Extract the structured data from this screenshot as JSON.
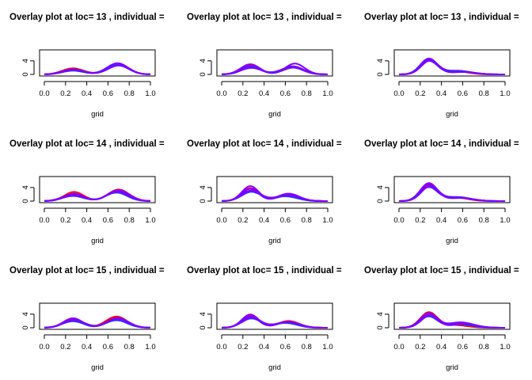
{
  "colors": {
    "red": "#ff0000",
    "blue": "#3030ff",
    "violet": "#8000ff"
  },
  "chart_data": [
    {
      "type": "line",
      "title": "Overlay plot at loc= 13 , individual =",
      "xlabel": "grid",
      "ylabel": "",
      "xlim": [
        0,
        1
      ],
      "ylim": [
        0,
        7
      ],
      "x_ticks": [
        "0.0",
        "0.2",
        "0.4",
        "0.6",
        "0.8",
        "1.0"
      ],
      "y_ticks": [
        "0",
        "4"
      ],
      "series": [
        {
          "color": "#ff0000",
          "peaks": [
            [
              0.27,
              0.1,
              1.8
            ],
            [
              0.69,
              0.1,
              3.0
            ]
          ]
        },
        {
          "color": "#8000ff",
          "peaks": [
            [
              0.27,
              0.1,
              1.5
            ],
            [
              0.69,
              0.1,
              3.3
            ]
          ]
        },
        {
          "color": "#8000ff",
          "peaks": [
            [
              0.27,
              0.1,
              1.3
            ],
            [
              0.69,
              0.1,
              3.1
            ]
          ]
        },
        {
          "color": "#3030ff",
          "peaks": [
            [
              0.27,
              0.1,
              1.1
            ],
            [
              0.69,
              0.1,
              2.8
            ]
          ]
        },
        {
          "color": "#8000ff",
          "peaks": [
            [
              0.28,
              0.1,
              1.4
            ],
            [
              0.7,
              0.1,
              2.6
            ]
          ]
        }
      ]
    },
    {
      "type": "line",
      "title": "Overlay plot at loc= 13 , individual =",
      "xlabel": "grid",
      "ylabel": "",
      "xlim": [
        0,
        1
      ],
      "ylim": [
        0,
        7
      ],
      "x_ticks": [
        "0.0",
        "0.2",
        "0.4",
        "0.6",
        "0.8",
        "1.0"
      ],
      "y_ticks": [
        "0",
        "4"
      ],
      "series": [
        {
          "color": "#ff0000",
          "peaks": [
            [
              0.27,
              0.09,
              2.7
            ],
            [
              0.68,
              0.1,
              2.0
            ]
          ]
        },
        {
          "color": "#8000ff",
          "peaks": [
            [
              0.27,
              0.09,
              3.0
            ],
            [
              0.69,
              0.09,
              3.2
            ]
          ]
        },
        {
          "color": "#8000ff",
          "peaks": [
            [
              0.27,
              0.09,
              2.4
            ],
            [
              0.67,
              0.1,
              2.4
            ]
          ]
        },
        {
          "color": "#3030ff",
          "peaks": [
            [
              0.28,
              0.09,
              2.2
            ],
            [
              0.67,
              0.1,
              2.0
            ]
          ]
        },
        {
          "color": "#8000ff",
          "peaks": [
            [
              0.28,
              0.1,
              1.9
            ],
            [
              0.66,
              0.1,
              2.2
            ]
          ]
        }
      ]
    },
    {
      "type": "line",
      "title": "Overlay plot at loc= 13 , individual =",
      "xlabel": "grid",
      "ylabel": "",
      "xlim": [
        0,
        1
      ],
      "ylim": [
        0,
        7
      ],
      "x_ticks": [
        "0.0",
        "0.2",
        "0.4",
        "0.6",
        "0.8",
        "1.0"
      ],
      "y_ticks": [
        "0",
        "4"
      ],
      "series": [
        {
          "color": "#ff0000",
          "peaks": [
            [
              0.28,
              0.08,
              4.3
            ],
            [
              0.52,
              0.12,
              1.0
            ]
          ]
        },
        {
          "color": "#8000ff",
          "peaks": [
            [
              0.28,
              0.08,
              4.6
            ],
            [
              0.55,
              0.12,
              1.1
            ]
          ]
        },
        {
          "color": "#8000ff",
          "peaks": [
            [
              0.28,
              0.08,
              4.2
            ],
            [
              0.58,
              0.12,
              0.9
            ]
          ]
        },
        {
          "color": "#3030ff",
          "peaks": [
            [
              0.28,
              0.08,
              3.9
            ],
            [
              0.55,
              0.13,
              1.0
            ]
          ]
        },
        {
          "color": "#8000ff",
          "peaks": [
            [
              0.29,
              0.08,
              4.0
            ],
            [
              0.6,
              0.12,
              0.7
            ]
          ]
        }
      ]
    },
    {
      "type": "line",
      "title": "Overlay plot at loc= 14 , individual =",
      "xlabel": "grid",
      "ylabel": "",
      "xlim": [
        0,
        1
      ],
      "ylim": [
        0,
        7
      ],
      "x_ticks": [
        "0.0",
        "0.2",
        "0.4",
        "0.6",
        "0.8",
        "1.0"
      ],
      "y_ticks": [
        "0",
        "4"
      ],
      "series": [
        {
          "color": "#ff0000",
          "peaks": [
            [
              0.28,
              0.09,
              2.7
            ],
            [
              0.7,
              0.1,
              3.4
            ]
          ]
        },
        {
          "color": "#8000ff",
          "peaks": [
            [
              0.28,
              0.09,
              2.2
            ],
            [
              0.7,
              0.1,
              3.2
            ]
          ]
        },
        {
          "color": "#8000ff",
          "peaks": [
            [
              0.27,
              0.1,
              1.9
            ],
            [
              0.69,
              0.1,
              3.0
            ]
          ]
        },
        {
          "color": "#3030ff",
          "peaks": [
            [
              0.27,
              0.1,
              1.5
            ],
            [
              0.68,
              0.1,
              2.5
            ]
          ]
        },
        {
          "color": "#8000ff",
          "peaks": [
            [
              0.28,
              0.1,
              1.7
            ],
            [
              0.69,
              0.1,
              2.8
            ]
          ]
        }
      ]
    },
    {
      "type": "line",
      "title": "Overlay plot at loc= 14 , individual =",
      "xlabel": "grid",
      "ylabel": "",
      "xlim": [
        0,
        1
      ],
      "ylim": [
        0,
        7
      ],
      "x_ticks": [
        "0.0",
        "0.2",
        "0.4",
        "0.6",
        "0.8",
        "1.0"
      ],
      "y_ticks": [
        "0",
        "4"
      ],
      "series": [
        {
          "color": "#ff0000",
          "peaks": [
            [
              0.27,
              0.08,
              3.8
            ],
            [
              0.63,
              0.1,
              2.0
            ]
          ]
        },
        {
          "color": "#8000ff",
          "peaks": [
            [
              0.27,
              0.08,
              4.4
            ],
            [
              0.63,
              0.1,
              2.2
            ]
          ]
        },
        {
          "color": "#8000ff",
          "peaks": [
            [
              0.27,
              0.08,
              3.6
            ],
            [
              0.62,
              0.1,
              1.6
            ]
          ]
        },
        {
          "color": "#3030ff",
          "peaks": [
            [
              0.28,
              0.09,
              2.7
            ],
            [
              0.6,
              0.11,
              1.4
            ]
          ]
        },
        {
          "color": "#8000ff",
          "peaks": [
            [
              0.28,
              0.09,
              3.1
            ],
            [
              0.62,
              0.11,
              1.8
            ]
          ]
        }
      ]
    },
    {
      "type": "line",
      "title": "Overlay plot at loc= 14 , individual =",
      "xlabel": "grid",
      "ylabel": "",
      "xlim": [
        0,
        1
      ],
      "ylim": [
        0,
        7
      ],
      "x_ticks": [
        "0.0",
        "0.2",
        "0.4",
        "0.6",
        "0.8",
        "1.0"
      ],
      "y_ticks": [
        "0",
        "4"
      ],
      "series": [
        {
          "color": "#ff0000",
          "peaks": [
            [
              0.28,
              0.08,
              4.6
            ],
            [
              0.52,
              0.12,
              1.1
            ]
          ]
        },
        {
          "color": "#8000ff",
          "peaks": [
            [
              0.28,
              0.08,
              5.2
            ],
            [
              0.55,
              0.12,
              1.2
            ]
          ]
        },
        {
          "color": "#8000ff",
          "peaks": [
            [
              0.28,
              0.08,
              4.8
            ],
            [
              0.55,
              0.12,
              1.0
            ]
          ]
        },
        {
          "color": "#3030ff",
          "peaks": [
            [
              0.28,
              0.08,
              4.0
            ],
            [
              0.55,
              0.13,
              1.1
            ]
          ]
        },
        {
          "color": "#8000ff",
          "peaks": [
            [
              0.29,
              0.08,
              4.3
            ],
            [
              0.58,
              0.12,
              0.9
            ]
          ]
        }
      ]
    },
    {
      "type": "line",
      "title": "Overlay plot at loc= 15 , individual =",
      "xlabel": "grid",
      "ylabel": "",
      "xlim": [
        0,
        1
      ],
      "ylim": [
        0,
        7
      ],
      "x_ticks": [
        "0.0",
        "0.2",
        "0.4",
        "0.6",
        "0.8",
        "1.0"
      ],
      "y_ticks": [
        "0",
        "4"
      ],
      "series": [
        {
          "color": "#ff0000",
          "peaks": [
            [
              0.27,
              0.09,
              2.5
            ],
            [
              0.68,
              0.1,
              3.3
            ]
          ]
        },
        {
          "color": "#8000ff",
          "peaks": [
            [
              0.27,
              0.09,
              2.8
            ],
            [
              0.69,
              0.1,
              2.9
            ]
          ]
        },
        {
          "color": "#8000ff",
          "peaks": [
            [
              0.27,
              0.09,
              2.2
            ],
            [
              0.69,
              0.1,
              2.6
            ]
          ]
        },
        {
          "color": "#3030ff",
          "peaks": [
            [
              0.27,
              0.1,
              1.9
            ],
            [
              0.68,
              0.1,
              2.2
            ]
          ]
        },
        {
          "color": "#8000ff",
          "peaks": [
            [
              0.28,
              0.1,
              2.3
            ],
            [
              0.69,
              0.1,
              2.7
            ]
          ]
        }
      ]
    },
    {
      "type": "line",
      "title": "Overlay plot at loc= 15 , individual =",
      "xlabel": "grid",
      "ylabel": "",
      "xlim": [
        0,
        1
      ],
      "ylim": [
        0,
        7
      ],
      "x_ticks": [
        "0.0",
        "0.2",
        "0.4",
        "0.6",
        "0.8",
        "1.0"
      ],
      "y_ticks": [
        "0",
        "4"
      ],
      "series": [
        {
          "color": "#ff0000",
          "peaks": [
            [
              0.27,
              0.08,
              3.5
            ],
            [
              0.63,
              0.1,
              2.0
            ]
          ]
        },
        {
          "color": "#8000ff",
          "peaks": [
            [
              0.27,
              0.08,
              3.9
            ],
            [
              0.63,
              0.1,
              1.8
            ]
          ]
        },
        {
          "color": "#8000ff",
          "peaks": [
            [
              0.27,
              0.08,
              3.3
            ],
            [
              0.61,
              0.1,
              1.5
            ]
          ]
        },
        {
          "color": "#3030ff",
          "peaks": [
            [
              0.28,
              0.09,
              2.7
            ],
            [
              0.6,
              0.11,
              1.4
            ]
          ]
        },
        {
          "color": "#8000ff",
          "peaks": [
            [
              0.28,
              0.09,
              3.0
            ],
            [
              0.62,
              0.11,
              1.7
            ]
          ]
        }
      ]
    },
    {
      "type": "line",
      "title": "Overlay plot at loc= 15 , individual =",
      "xlabel": "grid",
      "ylabel": "",
      "xlim": [
        0,
        1
      ],
      "ylim": [
        0,
        7
      ],
      "x_ticks": [
        "0.0",
        "0.2",
        "0.4",
        "0.6",
        "0.8",
        "1.0"
      ],
      "y_ticks": [
        "0",
        "4"
      ],
      "series": [
        {
          "color": "#ff0000",
          "peaks": [
            [
              0.28,
              0.08,
              4.5
            ],
            [
              0.52,
              0.12,
              0.8
            ]
          ]
        },
        {
          "color": "#8000ff",
          "peaks": [
            [
              0.28,
              0.08,
              4.2
            ],
            [
              0.58,
              0.12,
              1.6
            ]
          ]
        },
        {
          "color": "#8000ff",
          "peaks": [
            [
              0.28,
              0.08,
              3.8
            ],
            [
              0.6,
              0.11,
              1.3
            ]
          ]
        },
        {
          "color": "#3030ff",
          "peaks": [
            [
              0.28,
              0.08,
              3.3
            ],
            [
              0.57,
              0.12,
              1.0
            ]
          ]
        },
        {
          "color": "#8000ff",
          "peaks": [
            [
              0.29,
              0.08,
              3.6
            ],
            [
              0.62,
              0.11,
              1.2
            ]
          ]
        }
      ]
    }
  ]
}
